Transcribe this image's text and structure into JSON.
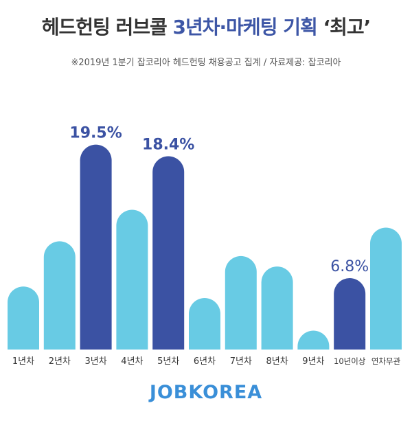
{
  "header": {
    "title_part1": "헤드헌팅 러브콜",
    "title_part2": "3년차·마케팅 기획",
    "title_part3": "‘최고’",
    "subtitle": "※2019년 1분기 잡코리아 헤드헌팅 채용공고 집계  / 자료제공: 잡코리아"
  },
  "brand": {
    "logo_text": "JOBKOREA"
  },
  "chart_data": {
    "type": "bar",
    "categories": [
      "1년차",
      "2년차",
      "3년차",
      "4년차",
      "5년차",
      "6년차",
      "7년차",
      "8년차",
      "9년차",
      "10년이상",
      "연차무관"
    ],
    "values": [
      6.0,
      10.3,
      19.5,
      13.3,
      18.4,
      4.9,
      8.9,
      7.9,
      1.8,
      6.8,
      11.6
    ],
    "labels": [
      "",
      "",
      "19.5%",
      "",
      "18.4%",
      "",
      "",
      "",
      "",
      "6.8%",
      ""
    ],
    "highlight": [
      false,
      false,
      true,
      false,
      true,
      false,
      false,
      false,
      false,
      true,
      false
    ],
    "ylim": [
      0,
      20
    ],
    "colors": {
      "normal": "#68cbe4",
      "highlight": "#3b52a3",
      "label": "#3b52a3"
    },
    "grid": false,
    "legend": "none"
  }
}
